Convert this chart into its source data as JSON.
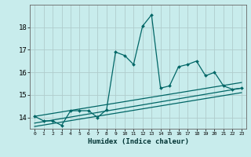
{
  "xlabel": "Humidex (Indice chaleur)",
  "bg_color": "#c8ecec",
  "grid_color": "#b0cccc",
  "line_color": "#006666",
  "xlim": [
    -0.5,
    23.5
  ],
  "ylim": [
    13.5,
    19.0
  ],
  "xticks": [
    0,
    1,
    2,
    3,
    4,
    5,
    6,
    7,
    8,
    9,
    10,
    11,
    12,
    13,
    14,
    15,
    16,
    17,
    18,
    19,
    20,
    21,
    22,
    23
  ],
  "yticks": [
    14,
    15,
    16,
    17,
    18
  ],
  "series_x": [
    0,
    1,
    2,
    3,
    4,
    5,
    6,
    7,
    8,
    9,
    10,
    11,
    12,
    13,
    14,
    15,
    16,
    17,
    18,
    19,
    20,
    21,
    22,
    23
  ],
  "series_y": [
    14.05,
    13.85,
    13.85,
    13.65,
    14.3,
    14.3,
    14.3,
    14.0,
    14.35,
    16.9,
    16.75,
    16.35,
    18.05,
    18.55,
    15.3,
    15.4,
    16.25,
    16.35,
    16.5,
    15.85,
    16.0,
    15.4,
    15.25,
    15.3
  ],
  "trend1_x": [
    0,
    23
  ],
  "trend1_y": [
    14.05,
    15.55
  ],
  "trend2_x": [
    0,
    23
  ],
  "trend2_y": [
    13.75,
    15.3
  ],
  "trend3_x": [
    0,
    23
  ],
  "trend3_y": [
    13.6,
    15.1
  ]
}
